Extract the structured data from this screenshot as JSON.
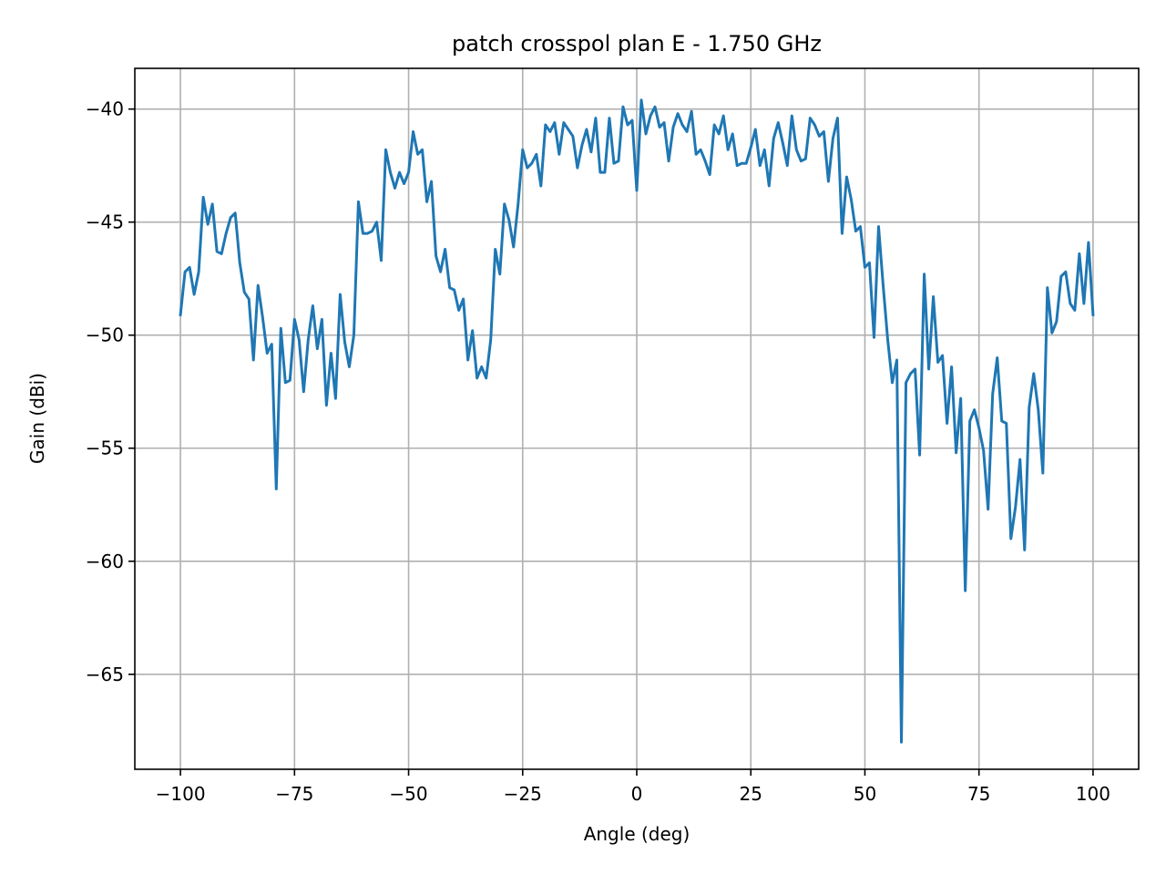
{
  "chart_data": {
    "type": "line",
    "title": "patch crosspol plan E - 1.750 GHz",
    "xlabel": "Angle (deg)",
    "ylabel": "Gain (dBi)",
    "xlim": [
      -110,
      110
    ],
    "ylim": [
      -69.2,
      -38.2
    ],
    "xticks": [
      -100,
      -75,
      -50,
      -25,
      0,
      25,
      50,
      75,
      100
    ],
    "xtick_labels": [
      "−100",
      "−75",
      "−50",
      "−25",
      "0",
      "25",
      "50",
      "75",
      "100"
    ],
    "yticks": [
      -65,
      -60,
      -55,
      -50,
      -45,
      -40
    ],
    "ytick_labels": [
      "−65",
      "−60",
      "−55",
      "−50",
      "−45",
      "−40"
    ],
    "grid": true,
    "color": "#1f77b4",
    "series": [
      {
        "x": [
          -100,
          -99,
          -98,
          -97,
          -96,
          -95,
          -94,
          -93,
          -92,
          -91,
          -90,
          -89,
          -88,
          -87,
          -86,
          -85,
          -84,
          -83,
          -82,
          -81,
          -80,
          -79,
          -78,
          -77,
          -76,
          -75,
          -74,
          -73,
          -72,
          -71,
          -70,
          -69,
          -68,
          -67,
          -66,
          -65,
          -64,
          -63,
          -62,
          -61,
          -60,
          -59,
          -58,
          -57,
          -56,
          -55,
          -54,
          -53,
          -52,
          -51,
          -50,
          -49,
          -48,
          -47,
          -46,
          -45,
          -44,
          -43,
          -42,
          -41,
          -40,
          -39,
          -38,
          -37,
          -36,
          -35,
          -34,
          -33,
          -32,
          -31,
          -30,
          -29,
          -28,
          -27,
          -26,
          -25,
          -24,
          -23,
          -22,
          -21,
          -20,
          -19,
          -18,
          -17,
          -16,
          -15,
          -14,
          -13,
          -12,
          -11,
          -10,
          -9,
          -8,
          -7,
          -6,
          -5,
          -4,
          -3,
          -2,
          -1,
          0,
          1,
          2,
          3,
          4,
          5,
          6,
          7,
          8,
          9,
          10,
          11,
          12,
          13,
          14,
          15,
          16,
          17,
          18,
          19,
          20,
          21,
          22,
          23,
          24,
          25,
          26,
          27,
          28,
          29,
          30,
          31,
          32,
          33,
          34,
          35,
          36,
          37,
          38,
          39,
          40,
          41,
          42,
          43,
          44,
          45,
          46,
          47,
          48,
          49,
          50,
          51,
          52,
          53,
          54,
          55,
          56,
          57,
          58,
          59,
          60,
          61,
          62,
          63,
          64,
          65,
          66,
          67,
          68,
          69,
          70,
          71,
          72,
          73,
          74,
          75,
          76,
          77,
          78,
          79,
          80,
          81,
          82,
          83,
          84,
          85,
          86,
          87,
          88,
          89,
          90,
          91,
          92,
          93,
          94,
          95,
          96,
          97,
          98,
          99,
          100
        ],
        "y": [
          -49.1,
          -47.2,
          -47.0,
          -48.2,
          -47.2,
          -43.9,
          -45.1,
          -44.2,
          -46.3,
          -46.4,
          -45.5,
          -44.8,
          -44.6,
          -46.8,
          -48.1,
          -48.4,
          -51.1,
          -47.8,
          -49.2,
          -50.8,
          -50.4,
          -56.8,
          -49.7,
          -52.1,
          -52.0,
          -49.3,
          -50.2,
          -52.5,
          -50.2,
          -48.7,
          -50.6,
          -49.3,
          -53.1,
          -50.8,
          -52.8,
          -48.2,
          -50.3,
          -51.4,
          -50.0,
          -44.1,
          -45.5,
          -45.5,
          -45.4,
          -45.0,
          -46.7,
          -41.8,
          -42.8,
          -43.5,
          -42.8,
          -43.3,
          -42.8,
          -41.0,
          -42.0,
          -41.8,
          -44.1,
          -43.2,
          -46.5,
          -47.2,
          -46.2,
          -47.9,
          -48.0,
          -48.9,
          -48.4,
          -51.1,
          -49.8,
          -51.9,
          -51.4,
          -51.9,
          -50.2,
          -46.2,
          -47.3,
          -44.2,
          -44.9,
          -46.1,
          -44.2,
          -41.8,
          -42.6,
          -42.4,
          -42.0,
          -43.4,
          -40.7,
          -41.0,
          -40.6,
          -42.0,
          -40.6,
          -40.9,
          -41.2,
          -42.6,
          -41.6,
          -40.9,
          -41.9,
          -40.4,
          -42.8,
          -42.8,
          -40.4,
          -42.4,
          -42.3,
          -39.9,
          -40.7,
          -40.5,
          -43.6,
          -39.6,
          -41.1,
          -40.3,
          -39.9,
          -40.8,
          -40.6,
          -42.3,
          -40.8,
          -40.2,
          -40.7,
          -41.0,
          -40.1,
          -42.0,
          -41.8,
          -42.3,
          -42.9,
          -40.7,
          -41.1,
          -40.3,
          -41.8,
          -41.1,
          -42.5,
          -42.4,
          -42.4,
          -41.7,
          -40.9,
          -42.5,
          -41.8,
          -43.4,
          -41.3,
          -40.6,
          -41.5,
          -42.5,
          -40.3,
          -41.8,
          -42.3,
          -42.2,
          -40.4,
          -40.7,
          -41.2,
          -41.0,
          -43.2,
          -41.3,
          -40.4,
          -45.5,
          -43.0,
          -44.0,
          -45.4,
          -45.2,
          -47.0,
          -46.8,
          -50.1,
          -45.2,
          -47.8,
          -50.2,
          -52.1,
          -51.1,
          -68.0,
          -52.1,
          -51.7,
          -51.5,
          -55.3,
          -47.3,
          -51.5,
          -48.3,
          -51.2,
          -50.9,
          -53.9,
          -51.4,
          -55.2,
          -52.8,
          -61.3,
          -53.8,
          -53.3,
          -54.1,
          -55.1,
          -57.7,
          -52.6,
          -51.0,
          -53.8,
          -53.9,
          -59.0,
          -57.6,
          -55.5,
          -59.5,
          -53.2,
          -51.7,
          -53.3,
          -56.1,
          -47.9,
          -49.9,
          -49.4,
          -47.4,
          -47.2,
          -48.6,
          -48.9,
          -46.4,
          -48.6,
          -45.9,
          -49.1
        ]
      }
    ]
  }
}
